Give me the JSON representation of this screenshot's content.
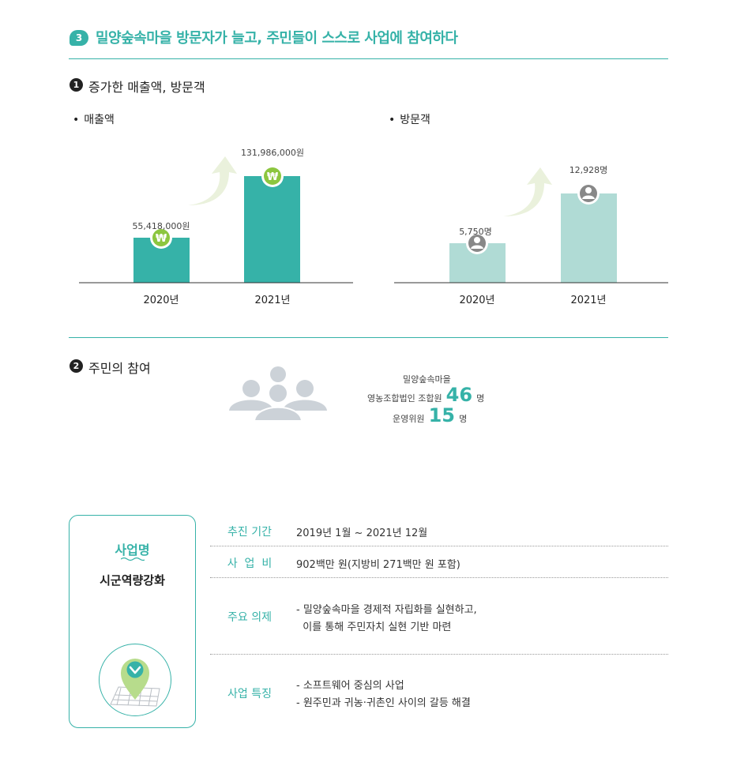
{
  "header": {
    "badge": "3",
    "title": "밀양숲속마을 방문자가 늘고, 주민들이 스스로 사업에 참여하다"
  },
  "section1": {
    "num": "1",
    "title": "증가한 매출액, 방문객",
    "sales": {
      "label": "매출액",
      "icon": "won-icon",
      "bar_color": "#36b2a8"
    },
    "visitors": {
      "label": "방문객",
      "icon": "person-icon",
      "bar_color": "#b0dbd5"
    }
  },
  "chart_data": [
    {
      "type": "bar",
      "title": "매출액",
      "categories": [
        "2020년",
        "2021년"
      ],
      "values": [
        55418000,
        131986000
      ],
      "labels": [
        "55,418,000원",
        "131,986,000원"
      ]
    },
    {
      "type": "bar",
      "title": "방문객",
      "categories": [
        "2020년",
        "2021년"
      ],
      "values": [
        5750,
        12928
      ],
      "labels": [
        "5,750명",
        "12,928명"
      ]
    }
  ],
  "section2": {
    "num": "2",
    "title": "주민의 참여",
    "line1": "밀양숲속마을",
    "line2_prefix": "영농조합법인 조합원",
    "members": "46",
    "unit1": "명",
    "line3_prefix": "운영위원",
    "committee": "15",
    "unit2": "명"
  },
  "project": {
    "heading": "사업명",
    "name": "시군역량강화",
    "rows": [
      {
        "label": "추진 기간",
        "lines": [
          "2019년 1월 ~ 2021년 12월"
        ]
      },
      {
        "label": "사  업  비",
        "lines": [
          "902백만 원(지방비 271백만 원 포함)"
        ]
      },
      {
        "label": "주요 의제",
        "lines": [
          "- 밀양숲속마을 경제적 자립화를 실현하고,",
          "  이를 통해 주민자치 실현 기반 마련"
        ]
      },
      {
        "label": "사업 특징",
        "lines": [
          "- 소프트웨어 중심의 사업",
          "- 원주민과 귀농·귀촌인 사이의 갈등 해결"
        ]
      }
    ]
  },
  "colors": {
    "accent": "#36b2a8",
    "light": "#b0dbd5",
    "arrow": "#eaf1dc",
    "icon_green": "#8cc63f",
    "people": "#ccd2d8"
  }
}
